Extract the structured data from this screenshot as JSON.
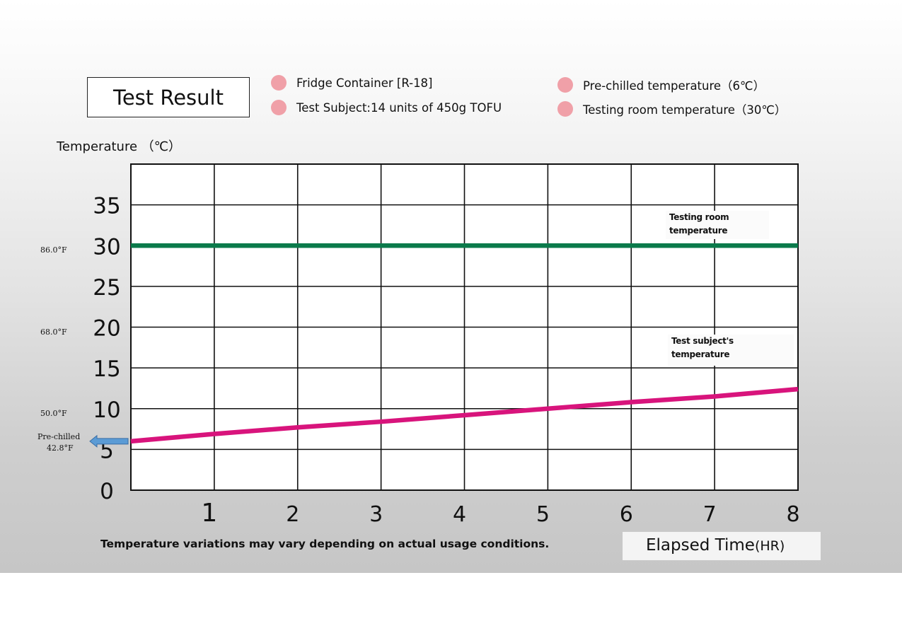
{
  "header": {
    "title": "Test Result",
    "legend": [
      {
        "label": "Fridge Container [R-18]"
      },
      {
        "label": "Test Subject:14 units of 450g TOFU"
      },
      {
        "label": "Pre-chilled temperature（6℃）"
      },
      {
        "label": "Testing room temperature（30℃）"
      }
    ],
    "dot_color": "#f0a0a8"
  },
  "chart_data": {
    "type": "line",
    "ylabel": "Temperature （℃）",
    "xlabel": "Elapsed Time",
    "xlabel_unit": "(HR)",
    "xlim": [
      0,
      8
    ],
    "ylim": [
      0,
      40
    ],
    "x_ticks": [
      "1",
      "2",
      "3",
      "4",
      "5",
      "6",
      "7",
      "8"
    ],
    "y_ticks": [
      "0",
      "5",
      "10",
      "15",
      "20",
      "25",
      "30",
      "35"
    ],
    "grid": true,
    "series": [
      {
        "color": "#0b7a4b",
        "x": [
          0,
          8
        ],
        "y": [
          30,
          30
        ]
      },
      {
        "color": "#d8147c",
        "x": [
          0,
          1,
          2,
          3,
          4,
          5,
          6,
          7,
          8
        ],
        "y": [
          6,
          6.9,
          7.7,
          8.4,
          9.2,
          10,
          10.8,
          11.5,
          12.4
        ]
      }
    ],
    "fahrenheit_labels": [
      {
        "text": "86.0°F"
      },
      {
        "text": "68.0°F"
      },
      {
        "text": "50.0°F"
      }
    ],
    "prechilled_marker": {
      "line1": "Pre-chilled",
      "line2": "42.8°F",
      "value": 6,
      "color": "#5b9bd5"
    },
    "annotations": [
      {
        "line1": "Testing room",
        "line2": "temperature"
      },
      {
        "line1": "Test subject's",
        "line2": "temperature"
      }
    ]
  },
  "footer": {
    "note": "Temperature variations may vary depending on actual usage conditions."
  }
}
